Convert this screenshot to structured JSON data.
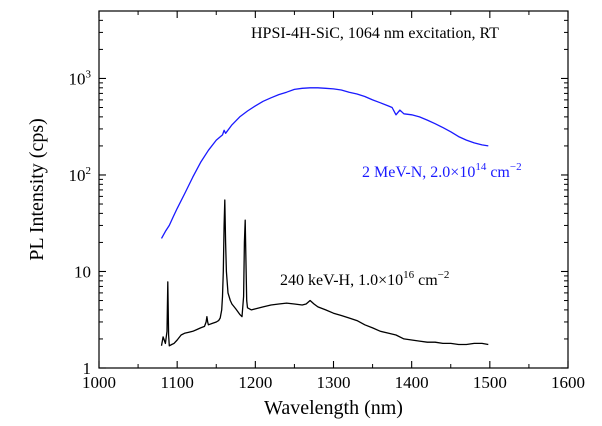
{
  "chart_data": {
    "type": "line",
    "title": "",
    "xlabel": "Wavelength (nm)",
    "ylabel": "PL Intensity (cps)",
    "xlim": [
      1000,
      1600
    ],
    "ylim": [
      1,
      5000
    ],
    "y_scale": "log",
    "grid": false,
    "legend": "none",
    "x_ticks": [
      1000,
      1100,
      1200,
      1300,
      1400,
      1500,
      1600
    ],
    "x_tick_labels": [
      "1000",
      "1100",
      "1200",
      "1300",
      "1400",
      "1500",
      "1600"
    ],
    "y_ticks": [
      1,
      10,
      100,
      1000
    ],
    "y_tick_labels": [
      {
        "base": "1",
        "exp": ""
      },
      {
        "base": "10",
        "exp": ""
      },
      {
        "base": "10",
        "exp": "2"
      },
      {
        "base": "10",
        "exp": "3"
      }
    ],
    "annotations": {
      "header": "HPSI-4H-SiC, 1064 nm excitation, RT",
      "n_label": {
        "main": "2 MeV-N, 2.0×10",
        "exp": "14",
        "unit": " cm",
        "unit_exp": "−2"
      },
      "h_label": {
        "main": "240 keV-H, 1.0×10",
        "exp": "16",
        "unit": " cm",
        "unit_exp": "−2"
      }
    },
    "series": [
      {
        "color": "#1a1aff",
        "x": [
          1080,
          1085,
          1090,
          1095,
          1100,
          1110,
          1120,
          1130,
          1140,
          1150,
          1158,
          1160,
          1162,
          1170,
          1180,
          1190,
          1200,
          1210,
          1220,
          1230,
          1240,
          1250,
          1260,
          1270,
          1280,
          1290,
          1300,
          1310,
          1320,
          1330,
          1340,
          1350,
          1360,
          1370,
          1375,
          1380,
          1385,
          1390,
          1400,
          1410,
          1420,
          1430,
          1440,
          1450,
          1460,
          1470,
          1480,
          1490,
          1498
        ],
        "y": [
          22,
          26,
          30,
          37,
          45,
          65,
          95,
          135,
          180,
          230,
          260,
          290,
          270,
          330,
          400,
          460,
          520,
          580,
          630,
          680,
          720,
          770,
          790,
          800,
          800,
          790,
          780,
          760,
          720,
          690,
          650,
          600,
          560,
          520,
          500,
          420,
          470,
          430,
          420,
          400,
          370,
          340,
          310,
          280,
          250,
          230,
          215,
          205,
          200
        ]
      },
      {
        "color": "#000000",
        "x": [
          1080,
          1082,
          1085,
          1087,
          1088,
          1089,
          1090,
          1093,
          1096,
          1100,
          1105,
          1110,
          1115,
          1120,
          1125,
          1130,
          1135,
          1137,
          1138,
          1139,
          1140,
          1145,
          1150,
          1153,
          1155,
          1157,
          1158,
          1159,
          1160,
          1161,
          1162,
          1163,
          1165,
          1168,
          1170,
          1175,
          1180,
          1183,
          1185,
          1186,
          1187,
          1188,
          1189,
          1190,
          1195,
          1200,
          1210,
          1220,
          1230,
          1240,
          1250,
          1260,
          1265,
          1270,
          1275,
          1280,
          1290,
          1300,
          1310,
          1320,
          1330,
          1340,
          1350,
          1360,
          1370,
          1380,
          1390,
          1400,
          1410,
          1420,
          1430,
          1440,
          1450,
          1460,
          1470,
          1480,
          1490,
          1498
        ],
        "y": [
          1.7,
          2.1,
          1.8,
          2.4,
          7.8,
          2.2,
          1.7,
          1.75,
          1.8,
          1.95,
          2.2,
          2.3,
          2.35,
          2.4,
          2.5,
          2.6,
          2.7,
          3.0,
          3.4,
          3.0,
          2.8,
          2.9,
          3.0,
          3.1,
          3.3,
          4.0,
          5.5,
          10,
          30,
          55,
          20,
          10,
          6,
          5,
          4.6,
          4.1,
          3.6,
          3.4,
          5.5,
          20,
          34,
          12,
          5,
          4.2,
          4.0,
          4.1,
          4.3,
          4.5,
          4.6,
          4.7,
          4.6,
          4.5,
          4.6,
          5.0,
          4.6,
          4.3,
          4.0,
          3.7,
          3.5,
          3.3,
          3.1,
          2.8,
          2.6,
          2.4,
          2.3,
          2.2,
          2.0,
          1.95,
          1.9,
          1.85,
          1.85,
          1.8,
          1.8,
          1.75,
          1.75,
          1.8,
          1.8,
          1.75
        ]
      }
    ]
  }
}
